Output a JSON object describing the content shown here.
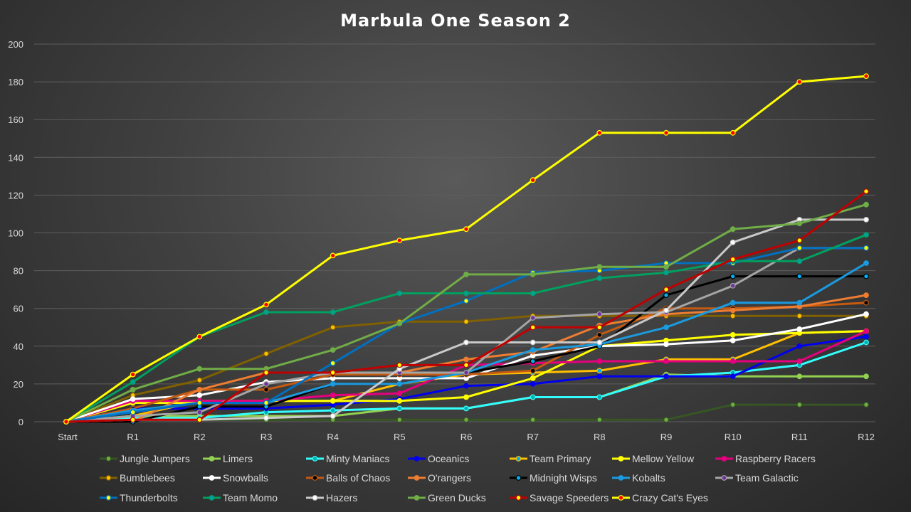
{
  "chart_data": {
    "type": "line",
    "title": "Marbula One Season 2",
    "xlabel": "",
    "ylabel": "",
    "ylim": [
      0,
      200
    ],
    "yticks": [
      0,
      20,
      40,
      60,
      80,
      100,
      120,
      140,
      160,
      180,
      200
    ],
    "grid": true,
    "legend_position": "bottom",
    "x": [
      "Start",
      "R1",
      "R2",
      "R3",
      "R4",
      "R5",
      "R6",
      "R7",
      "R8",
      "R9",
      "R10",
      "R11",
      "R12"
    ],
    "series": [
      {
        "name": "Jungle Jumpers",
        "color": "#375623",
        "marker": "#70ad47",
        "values": [
          0,
          1,
          1,
          1,
          1,
          1,
          1,
          1,
          1,
          1,
          9,
          9,
          9
        ]
      },
      {
        "name": "Limers",
        "color": "#92d050",
        "marker": "#92d050",
        "values": [
          0,
          3,
          3,
          3,
          3,
          7,
          7,
          13,
          13,
          25,
          24,
          24,
          24
        ]
      },
      {
        "name": "Minty Maniacs",
        "color": "#33ffff",
        "marker": "#00b0b0",
        "values": [
          0,
          2,
          2,
          5,
          6,
          7,
          7,
          13,
          13,
          24,
          26,
          30,
          42
        ]
      },
      {
        "name": "Oceanics",
        "color": "#0000ee",
        "marker": "#0000ee",
        "values": [
          0,
          7,
          7,
          7,
          9,
          12,
          19,
          20,
          24,
          24,
          24,
          40,
          45
        ]
      },
      {
        "name": "Team Primary",
        "color": "#ffc000",
        "marker": "#00b0f0",
        "values": [
          0,
          3,
          11,
          11,
          11,
          20,
          25,
          26,
          27,
          33,
          33,
          47,
          48
        ]
      },
      {
        "name": "Mellow Yellow",
        "color": "#ffff00",
        "marker": "#ffff00",
        "values": [
          0,
          10,
          10,
          11,
          11,
          11,
          13,
          23,
          40,
          43,
          46,
          47,
          48
        ]
      },
      {
        "name": "Raspberry Racers",
        "color": "#e6007e",
        "marker": "#e6007e",
        "values": [
          0,
          11,
          11,
          11,
          14,
          15,
          30,
          31,
          32,
          32,
          32,
          32,
          48
        ]
      },
      {
        "name": "Bumblebees",
        "color": "#806000",
        "marker": "#ffc000",
        "values": [
          0,
          14,
          22,
          36,
          50,
          53,
          53,
          56,
          56,
          56,
          56,
          56,
          56
        ]
      },
      {
        "name": "Snowballs",
        "color": "#ffffff",
        "marker": "#ffffff",
        "values": [
          0,
          12,
          14,
          21,
          23,
          23,
          23,
          35,
          40,
          41,
          43,
          49,
          57
        ]
      },
      {
        "name": "Balls of Chaos",
        "color": "#c55a11",
        "marker": "#000000",
        "values": [
          0,
          7,
          17,
          17,
          25,
          25,
          25,
          27,
          46,
          60,
          60,
          61,
          63
        ]
      },
      {
        "name": "O'rangers",
        "color": "#ed7d31",
        "marker": "#ed7d31",
        "values": [
          0,
          0,
          17,
          26,
          26,
          26,
          33,
          37,
          51,
          57,
          59,
          61,
          67
        ]
      },
      {
        "name": "Midnight Wisps",
        "color": "#000000",
        "marker": "#00b0f0",
        "values": [
          0,
          0,
          8,
          8,
          20,
          20,
          26,
          32,
          40,
          67,
          77,
          77,
          77
        ]
      },
      {
        "name": "Kobalts",
        "color": "#1a9be0",
        "marker": "#1a9be0",
        "values": [
          0,
          6,
          10,
          10,
          20,
          20,
          26,
          38,
          41,
          50,
          63,
          63,
          84
        ]
      },
      {
        "name": "Team Galactic",
        "color": "#a5a5a5",
        "marker": "#7030a0",
        "values": [
          0,
          3,
          5,
          20,
          26,
          26,
          26,
          55,
          57,
          58,
          72,
          92,
          92
        ]
      },
      {
        "name": "Thunderbolts",
        "color": "#0070c0",
        "marker": "#ffff00",
        "values": [
          0,
          5,
          10,
          10,
          31,
          52,
          64,
          79,
          80,
          84,
          84,
          92,
          92
        ]
      },
      {
        "name": "Team Momo",
        "color": "#00a060",
        "marker": "#00a0a0",
        "values": [
          0,
          21,
          45,
          58,
          58,
          68,
          68,
          68,
          76,
          79,
          85,
          85,
          99
        ]
      },
      {
        "name": "Hazers",
        "color": "#c9c9c9",
        "marker": "#ffffff",
        "values": [
          0,
          1,
          1,
          2,
          3,
          28,
          42,
          42,
          42,
          59,
          95,
          107,
          107
        ]
      },
      {
        "name": "Green Ducks",
        "color": "#70ad47",
        "marker": "#70ad47",
        "values": [
          0,
          17,
          28,
          28,
          38,
          52,
          78,
          78,
          82,
          82,
          102,
          105,
          115
        ]
      },
      {
        "name": "Savage Speeders",
        "color": "#c00000",
        "marker": "#ffff00",
        "values": [
          0,
          1,
          1,
          26,
          26,
          30,
          30,
          50,
          50,
          70,
          86,
          96,
          122
        ]
      },
      {
        "name": "Crazy Cat's Eyes",
        "color": "#ffff00",
        "marker": "#ff0000",
        "values": [
          0,
          25,
          45,
          62,
          88,
          96,
          102,
          128,
          153,
          153,
          153,
          180,
          183
        ]
      }
    ]
  }
}
